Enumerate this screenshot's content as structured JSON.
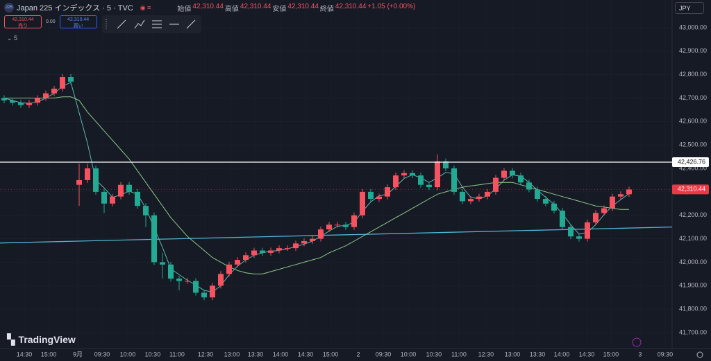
{
  "chart_data": {
    "type": "candlestick",
    "title": "Japan 225 インデックス · 5 · TVC",
    "ohlc_header": [
      {
        "label": "始値",
        "value": "42,310.44"
      },
      {
        "label": "高値",
        "value": "42,310.44"
      },
      {
        "label": "安値",
        "value": "42,310.44"
      },
      {
        "label": "終値",
        "value": "42,310.44"
      }
    ],
    "change": "+1.05 (+0.00%)",
    "sell": {
      "price": "42,310.44",
      "label": "売り"
    },
    "spread": "0.00",
    "buy": {
      "price": "42,310.44",
      "label": "買い"
    },
    "interval": "5",
    "currency": "JPY",
    "brand": "TradingView",
    "up_color": "#f7525f",
    "down_color": "#22ab94",
    "open": [
      42700,
      42690,
      42680,
      42670,
      42680,
      42700,
      42720,
      42740,
      42790,
      42330,
      42350,
      42400,
      42300,
      42250,
      42280,
      42330,
      42300,
      42240,
      42200,
      42000,
      41990,
      41930,
      41920,
      41920,
      41870,
      41850,
      41900,
      41950,
      41990,
      42010,
      42030,
      42050,
      42040,
      42050,
      42060,
      42060,
      42080,
      42090,
      42100,
      42140,
      42160,
      42160,
      42150,
      42200,
      42300,
      42270,
      42280,
      42320,
      42370,
      42380,
      42370,
      42330,
      42320,
      42430,
      42400,
      42300,
      42260,
      42270,
      42280,
      42300,
      42360,
      42390,
      42370,
      42340,
      42310,
      42270,
      42250,
      42220,
      42150,
      42110,
      42100,
      42170,
      42210,
      42230,
      42280,
      42290
    ],
    "high": [
      42712,
      42702,
      42692,
      42692,
      42712,
      42732,
      42752,
      42802,
      42802,
      42420,
      42420,
      42412,
      42312,
      42292,
      42342,
      42342,
      42312,
      42252,
      42212,
      42040,
      42002,
      41942,
      41932,
      41932,
      41882,
      41912,
      41962,
      42002,
      42022,
      42042,
      42062,
      42062,
      42062,
      42072,
      42072,
      42092,
      42102,
      42112,
      42152,
      42172,
      42172,
      42172,
      42212,
      42312,
      42312,
      42292,
      42332,
      42382,
      42392,
      42392,
      42382,
      42342,
      42460,
      42442,
      42412,
      42312,
      42282,
      42292,
      42312,
      42372,
      42402,
      42402,
      42382,
      42352,
      42322,
      42282,
      42262,
      42232,
      42162,
      42122,
      42182,
      42222,
      42242,
      42292,
      42302,
      42322
    ],
    "low": [
      42678,
      42668,
      42658,
      42658,
      42668,
      42688,
      42708,
      42728,
      42758,
      42240,
      42338,
      42288,
      42210,
      42238,
      42268,
      42288,
      42228,
      42150,
      41988,
      41930,
      41918,
      41880,
      41908,
      41858,
      41838,
      41838,
      41888,
      41938,
      41978,
      41998,
      42018,
      42028,
      42028,
      42038,
      42048,
      42048,
      42068,
      42078,
      42088,
      42128,
      42148,
      42138,
      42138,
      42188,
      42258,
      42258,
      42268,
      42308,
      42358,
      42358,
      42318,
      42308,
      42308,
      42388,
      42288,
      42248,
      42248,
      42258,
      42268,
      42288,
      42348,
      42358,
      42328,
      42298,
      42258,
      42238,
      42208,
      42138,
      42098,
      42088,
      42088,
      42158,
      42198,
      42218,
      42268,
      42278
    ],
    "close": [
      42690,
      42680,
      42670,
      42680,
      42700,
      42720,
      42740,
      42790,
      42770,
      42350,
      42400,
      42300,
      42250,
      42280,
      42330,
      42300,
      42240,
      42200,
      42000,
      41990,
      41930,
      41920,
      41920,
      41870,
      41850,
      41900,
      41950,
      41990,
      42010,
      42030,
      42050,
      42040,
      42050,
      42060,
      42060,
      42080,
      42090,
      42100,
      42140,
      42160,
      42160,
      42150,
      42200,
      42300,
      42270,
      42280,
      42320,
      42370,
      42380,
      42370,
      42330,
      42320,
      42430,
      42400,
      42300,
      42260,
      42270,
      42280,
      42300,
      42360,
      42390,
      42370,
      42340,
      42310,
      42270,
      42250,
      42220,
      42150,
      42110,
      42100,
      42170,
      42210,
      42230,
      42280,
      42290,
      42310
    ],
    "ma_lines": [
      {
        "color": "#5fb8b0",
        "values": [
          42700,
          42690,
          42680,
          42677,
          42683,
          42700,
          42720,
          42750,
          42767,
          42637,
          42507,
          42350,
          42317,
          42277,
          42287,
          42303,
          42290,
          42230,
          42147,
          42063,
          41973,
          41947,
          41923,
          41903,
          41880,
          41873,
          41900,
          41947,
          41983,
          42010,
          42030,
          42040,
          42047,
          42050,
          42057,
          42067,
          42077,
          42090,
          42110,
          42133,
          42153,
          42157,
          42170,
          42217,
          42257,
          42283,
          42290,
          42323,
          42357,
          42373,
          42360,
          42340,
          42360,
          42383,
          42377,
          42320,
          42277,
          42270,
          42283,
          42313,
          42350,
          42373,
          42367,
          42340,
          42307,
          42277,
          42247,
          42207,
          42160,
          42120,
          42127,
          42160,
          42203,
          42240,
          42267,
          42293
        ]
      },
      {
        "color": "#8fc98a",
        "values": [
          42700,
          42700,
          42700,
          42700,
          42700,
          42700,
          42700,
          42705,
          42705,
          42690,
          42640,
          42600,
          42560,
          42520,
          42480,
          42440,
          42390,
          42340,
          42290,
          42240,
          42190,
          42150,
          42110,
          42080,
          42050,
          42020,
          42000,
          41980,
          41965,
          41955,
          41950,
          41950,
          41960,
          41970,
          41980,
          41990,
          42000,
          42010,
          42020,
          42040,
          42055,
          42070,
          42090,
          42110,
          42130,
          42150,
          42170,
          42190,
          42210,
          42230,
          42250,
          42270,
          42290,
          42300,
          42310,
          42320,
          42325,
          42330,
          42335,
          42340,
          42340,
          42340,
          42330,
          42320,
          42310,
          42300,
          42290,
          42280,
          42270,
          42260,
          42250,
          42240,
          42235,
          42230,
          42225,
          42225
        ]
      }
    ],
    "hlines": [
      {
        "value": 42426.76,
        "label": "42,426.76",
        "color": "#ffffff"
      }
    ],
    "last_price": {
      "value": 42310.44,
      "label": "42,310.44",
      "color": "#f23645"
    },
    "trendline": {
      "values": [
        42082,
        42150
      ],
      "color": "#4fb6d6"
    },
    "ylim": [
      41632,
      43118
    ],
    "yticks": [
      {
        "value": 41700,
        "label": "41,700.00"
      },
      {
        "value": 41800,
        "label": "41,800.00"
      },
      {
        "value": 41900,
        "label": "41,900.00"
      },
      {
        "value": 42000,
        "label": "42,000.00"
      },
      {
        "value": 42100,
        "label": "42,100.00"
      },
      {
        "value": 42200,
        "label": "42,200.00"
      },
      {
        "value": 42300,
        "label": "42,300.00"
      },
      {
        "value": 42400,
        "label": "42,400.00"
      },
      {
        "value": 42500,
        "label": "42,500.00"
      },
      {
        "value": 42600,
        "label": "42,600.00"
      },
      {
        "value": 42700,
        "label": "42,700.00"
      },
      {
        "value": 42800,
        "label": "42,800.00"
      },
      {
        "value": 42900,
        "label": "42,900.00"
      },
      {
        "value": 43000,
        "label": "43,000.00"
      }
    ],
    "xlim": [
      -0.5,
      80.17
    ],
    "xticks": [
      {
        "value": 2.42,
        "label": "14:30"
      },
      {
        "value": 5.33,
        "label": "15:00"
      },
      {
        "value": 8.83,
        "label": "9月"
      },
      {
        "value": 11.75,
        "label": "09:30"
      },
      {
        "value": 14.83,
        "label": "10:00"
      },
      {
        "value": 17.83,
        "label": "10:30"
      },
      {
        "value": 20.75,
        "label": "11:00"
      },
      {
        "value": 24.17,
        "label": "12:30"
      },
      {
        "value": 27.33,
        "label": "13:00"
      },
      {
        "value": 30.17,
        "label": "13:30"
      },
      {
        "value": 33.17,
        "label": "14:00"
      },
      {
        "value": 36.17,
        "label": "14:30"
      },
      {
        "value": 39.17,
        "label": "15:00"
      },
      {
        "value": 42.5,
        "label": "2"
      },
      {
        "value": 45.5,
        "label": "09:30"
      },
      {
        "value": 48.5,
        "label": "10:00"
      },
      {
        "value": 51.58,
        "label": "10:30"
      },
      {
        "value": 54.58,
        "label": "11:00"
      },
      {
        "value": 57.83,
        "label": "12:30"
      },
      {
        "value": 61,
        "label": "13:00"
      },
      {
        "value": 64,
        "label": "13:30"
      },
      {
        "value": 66.92,
        "label": "14:00"
      },
      {
        "value": 69.92,
        "label": "14:30"
      },
      {
        "value": 72.83,
        "label": "15:00"
      },
      {
        "value": 76.33,
        "label": "3"
      },
      {
        "value": 79.33,
        "label": "09:30"
      }
    ],
    "grid": true
  }
}
